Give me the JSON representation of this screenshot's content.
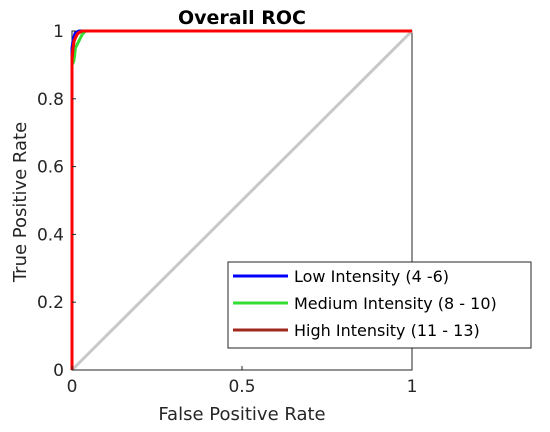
{
  "chart_data": {
    "type": "line",
    "title": "Overall ROC",
    "xlabel": "False Positive Rate",
    "ylabel": "True Positive Rate",
    "xlim": [
      0,
      1
    ],
    "ylim": [
      0,
      1
    ],
    "xticks": [
      0,
      0.5,
      1
    ],
    "xtick_labels": [
      "0",
      "0.5",
      "1"
    ],
    "yticks": [
      0,
      0.2,
      0.4,
      0.6,
      0.8,
      1
    ],
    "ytick_labels": [
      "0",
      "0.2",
      "0.4",
      "0.6",
      "0.8",
      "1"
    ],
    "grid": false,
    "legend_position": "bottom-right",
    "reference_line": {
      "x": [
        0,
        1
      ],
      "y": [
        0,
        1
      ],
      "color": "#c8c8c8"
    },
    "series": [
      {
        "name": "Low Intensity (4 -6)",
        "color": "#0000ff",
        "x": [
          0,
          0,
          0.003,
          0.005,
          0.008,
          0.01,
          0.015,
          0.02,
          0.03,
          1
        ],
        "y": [
          0,
          0.95,
          0.97,
          0.98,
          0.99,
          0.995,
          0.997,
          1.0,
          1.0,
          1.0
        ]
      },
      {
        "name": "Medium Intensity (8 - 10)",
        "color": "#33dd33",
        "x": [
          0,
          0,
          0.005,
          0.008,
          0.01,
          0.015,
          0.02,
          0.025,
          0.03,
          0.035,
          0.04,
          1
        ],
        "y": [
          0,
          0.9,
          0.91,
          0.93,
          0.95,
          0.96,
          0.97,
          0.98,
          0.99,
          0.995,
          1.0,
          1.0
        ]
      },
      {
        "name": "High Intensity (11 - 13)",
        "color": "#a0281e",
        "x": [
          0,
          0,
          0.003,
          0.006,
          0.01,
          0.015,
          0.02,
          0.03,
          1
        ],
        "y": [
          0,
          0.92,
          0.95,
          0.97,
          0.98,
          0.99,
          0.995,
          1.0,
          1.0
        ]
      },
      {
        "name": "",
        "color": "#ff0000",
        "x": [
          0,
          0,
          0.003,
          0.006,
          0.01,
          0.015,
          0.02,
          0.03,
          1
        ],
        "y": [
          0,
          0.92,
          0.95,
          0.97,
          0.98,
          0.99,
          0.995,
          1.0,
          1.0
        ]
      }
    ]
  }
}
